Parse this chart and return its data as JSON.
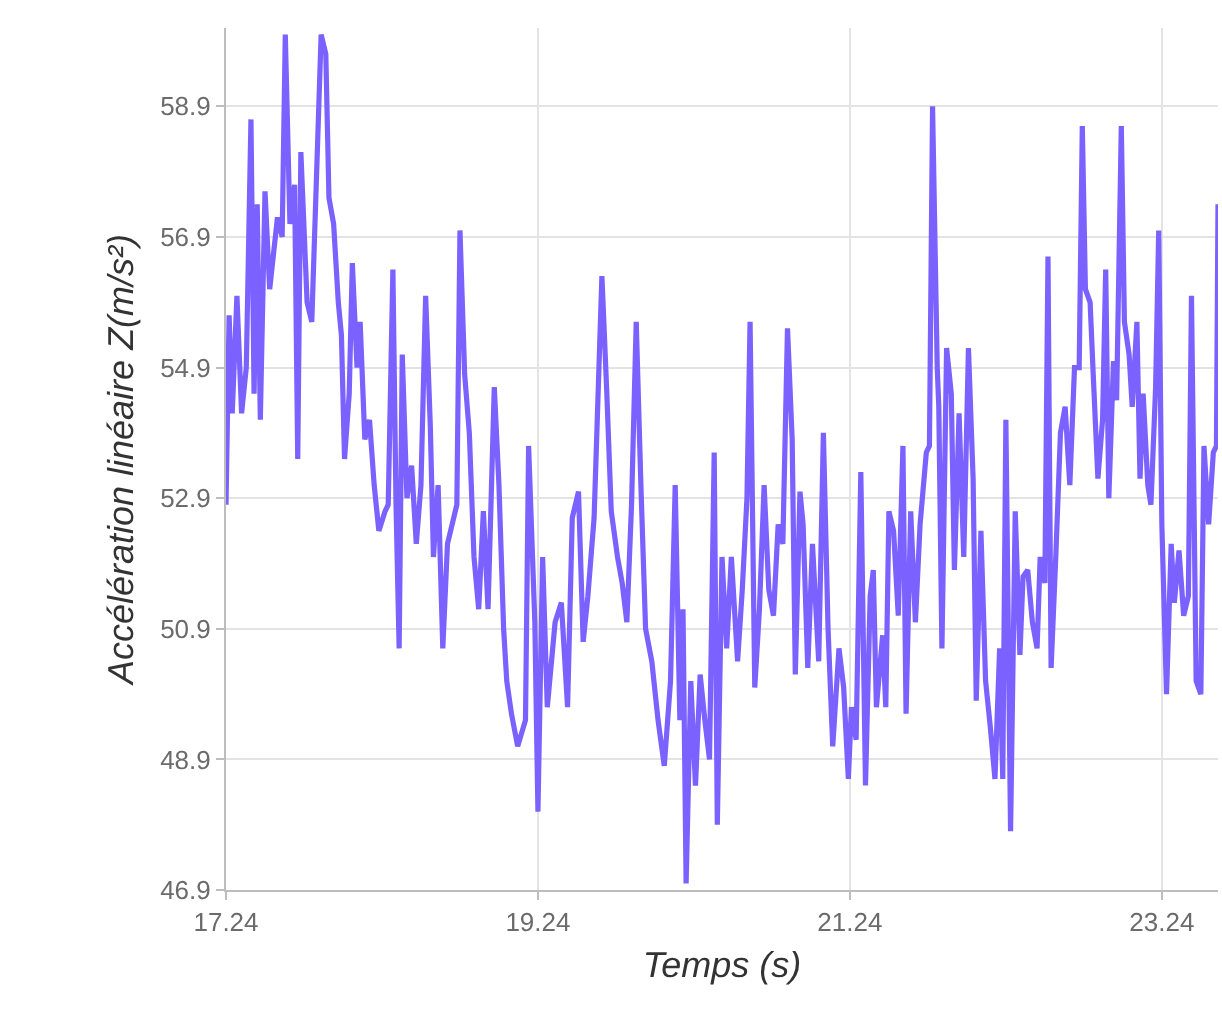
{
  "chart_data": {
    "type": "line",
    "xlabel": "Temps (s)",
    "ylabel": "Accélération linéaire Z(m/s²)",
    "xlim": [
      17.24,
      23.6
    ],
    "xticks": [
      17.24,
      19.24,
      21.24,
      23.24
    ],
    "ylim": [
      46.9,
      60.1
    ],
    "yticks": [
      46.9,
      48.9,
      50.9,
      52.9,
      54.9,
      56.9,
      58.9
    ],
    "grid": true,
    "marker": "none",
    "line_style": "solid",
    "series": [
      {
        "color": "#7b61ff",
        "x": [
          17.24,
          17.26,
          17.28,
          17.31,
          17.34,
          17.37,
          17.4,
          17.42,
          17.44,
          17.46,
          17.49,
          17.52,
          17.57,
          17.6,
          17.62,
          17.65,
          17.68,
          17.7,
          17.72,
          17.76,
          17.79,
          17.82,
          17.85,
          17.88,
          17.9,
          17.93,
          17.96,
          17.98,
          18.0,
          18.03,
          18.05,
          18.08,
          18.1,
          18.13,
          18.16,
          18.19,
          18.22,
          18.26,
          18.28,
          18.31,
          18.33,
          18.35,
          18.37,
          18.4,
          18.43,
          18.46,
          18.49,
          18.52,
          18.55,
          18.57,
          18.6,
          18.63,
          18.66,
          18.69,
          18.72,
          18.74,
          18.77,
          18.8,
          18.83,
          18.86,
          18.89,
          18.92,
          18.96,
          18.99,
          19.02,
          19.04,
          19.07,
          19.11,
          19.16,
          19.18,
          19.22,
          19.24,
          19.27,
          19.3,
          19.35,
          19.39,
          19.43,
          19.46,
          19.5,
          19.53,
          19.56,
          19.6,
          19.65,
          19.68,
          19.71,
          19.75,
          19.78,
          19.81,
          19.84,
          19.87,
          19.9,
          19.93,
          19.97,
          20.01,
          20.05,
          20.09,
          20.12,
          20.15,
          20.17,
          20.19,
          20.22,
          20.25,
          20.28,
          20.31,
          20.34,
          20.37,
          20.39,
          20.42,
          20.45,
          20.48,
          20.52,
          20.55,
          20.58,
          20.6,
          20.63,
          20.66,
          20.69,
          20.72,
          20.75,
          20.78,
          20.81,
          20.84,
          20.87,
          20.89,
          20.92,
          20.94,
          20.97,
          21.0,
          21.04,
          21.07,
          21.1,
          21.13,
          21.17,
          21.2,
          21.23,
          21.25,
          21.28,
          21.31,
          21.34,
          21.37,
          21.39,
          21.41,
          21.45,
          21.47,
          21.49,
          21.52,
          21.55,
          21.58,
          21.6,
          21.63,
          21.66,
          21.69,
          21.73,
          21.75,
          21.77,
          21.8,
          21.81,
          21.83,
          21.86,
          21.89,
          21.91,
          21.94,
          21.97,
          22.0,
          22.03,
          22.05,
          22.08,
          22.11,
          22.14,
          22.17,
          22.2,
          22.22,
          22.24,
          22.27,
          22.3,
          22.33,
          22.35,
          22.38,
          22.41,
          22.44,
          22.46,
          22.49,
          22.51,
          22.53,
          22.56,
          22.59,
          22.62,
          22.65,
          22.68,
          22.71,
          22.73,
          22.75,
          22.78,
          22.8,
          22.83,
          22.86,
          22.88,
          22.9,
          22.93,
          22.95,
          22.98,
          23.0,
          23.03,
          23.05,
          23.08,
          23.1,
          23.12,
          23.15,
          23.17,
          23.2,
          23.22,
          23.24,
          23.27,
          23.3,
          23.32,
          23.35,
          23.38,
          23.41,
          23.43,
          23.46,
          23.49,
          23.51,
          23.54,
          23.57,
          23.59,
          23.6
        ],
        "values": [
          52.8,
          55.7,
          54.2,
          56.0,
          54.2,
          54.9,
          58.7,
          54.5,
          57.4,
          54.1,
          57.6,
          56.1,
          57.2,
          56.9,
          60.0,
          57.1,
          57.7,
          53.5,
          58.2,
          55.9,
          55.6,
          57.8,
          60.0,
          59.7,
          57.5,
          57.1,
          55.9,
          55.4,
          53.5,
          54.5,
          56.5,
          54.9,
          55.6,
          53.8,
          54.1,
          53.1,
          52.4,
          52.7,
          52.8,
          56.4,
          52.8,
          50.6,
          55.1,
          52.9,
          53.4,
          52.2,
          53.1,
          56.0,
          54.0,
          52.0,
          53.1,
          50.6,
          52.2,
          52.5,
          52.8,
          57.0,
          54.8,
          53.9,
          52.0,
          51.2,
          52.7,
          51.2,
          54.6,
          53.1,
          50.9,
          50.1,
          49.6,
          49.1,
          49.5,
          53.7,
          51.0,
          48.1,
          52.0,
          49.7,
          51.0,
          51.3,
          49.7,
          52.6,
          53.0,
          50.7,
          51.4,
          52.6,
          56.3,
          54.6,
          52.7,
          52.0,
          51.6,
          51.0,
          52.8,
          55.6,
          53.1,
          50.9,
          50.4,
          49.5,
          48.8,
          50.1,
          53.1,
          49.5,
          51.2,
          47.0,
          50.1,
          48.5,
          50.2,
          49.5,
          48.9,
          53.6,
          47.9,
          52.0,
          50.6,
          52.0,
          50.4,
          51.5,
          52.9,
          55.6,
          50.0,
          51.2,
          53.1,
          51.5,
          51.1,
          52.5,
          52.2,
          55.5,
          53.8,
          50.2,
          53.0,
          52.5,
          50.3,
          52.2,
          50.4,
          53.9,
          50.9,
          49.1,
          50.6,
          50.0,
          48.6,
          49.7,
          49.2,
          53.3,
          48.5,
          51.4,
          51.8,
          49.7,
          50.8,
          49.7,
          52.7,
          52.4,
          51.1,
          53.7,
          49.6,
          52.7,
          51.0,
          52.5,
          53.6,
          53.7,
          58.9,
          54.9,
          54.3,
          50.6,
          55.2,
          54.5,
          51.8,
          54.2,
          52.0,
          55.2,
          53.2,
          49.8,
          52.4,
          50.1,
          49.4,
          48.6,
          50.6,
          48.6,
          54.1,
          47.8,
          52.7,
          50.5,
          51.7,
          51.8,
          51.0,
          50.6,
          52.0,
          51.6,
          56.6,
          50.3,
          52.0,
          53.9,
          54.3,
          53.1,
          54.9,
          54.9,
          58.6,
          56.1,
          55.9,
          54.8,
          53.2,
          54.1,
          56.4,
          52.9,
          55.0,
          54.4,
          58.6,
          55.6,
          55.1,
          54.3,
          55.6,
          53.2,
          54.5,
          53.1,
          52.8,
          54.6,
          57.0,
          52.5,
          49.9,
          52.2,
          51.3,
          52.1,
          51.1,
          51.4,
          56.0,
          50.1,
          49.9,
          53.7,
          52.5,
          53.6,
          53.7,
          57.4
        ]
      }
    ]
  }
}
